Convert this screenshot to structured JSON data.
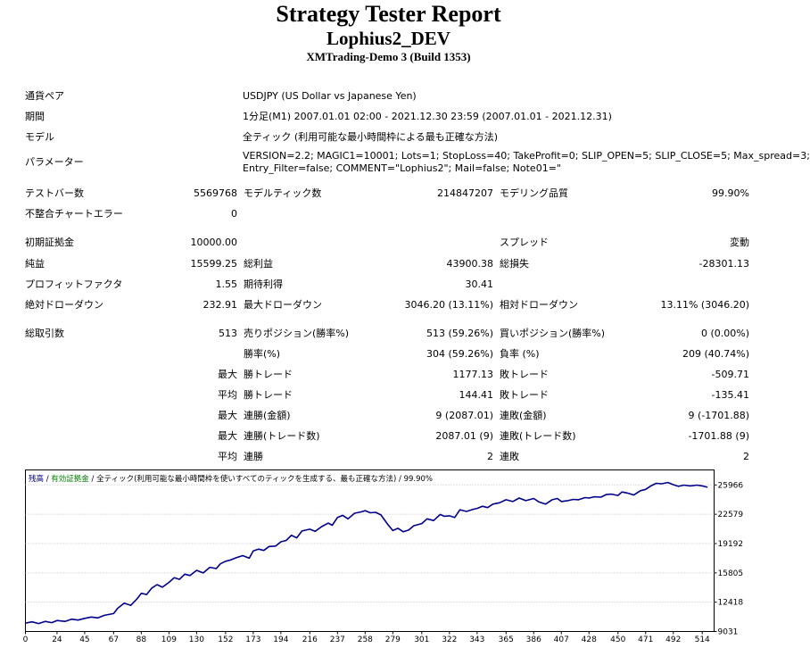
{
  "header": {
    "title": "Strategy Tester Report",
    "subtitle": "Lophius2_DEV",
    "build": "XMTrading-Demo 3 (Build 1353)"
  },
  "report": {
    "symbol": {
      "label": "通貨ペア",
      "value": "USDJPY (US Dollar vs Japanese Yen)"
    },
    "period": {
      "label": "期間",
      "value": "1分足(M1) 2007.01.01 02:00 - 2021.12.30 23:59 (2007.01.01 - 2021.12.31)"
    },
    "model": {
      "label": "モデル",
      "value": "全ティック (利用可能な最小時間枠による最も正確な方法)"
    },
    "parameters": {
      "label": "パラメーター",
      "line1": "VERSION=2.2; MAGIC1=10001; Lots=1; StopLoss=40; TakeProfit=0; SLIP_OPEN=5; SLIP_CLOSE=5; Max_spread=3;",
      "line2": "Entry_Filter=false; COMMENT=\"Lophius2\"; Mail=false; Note01=\""
    },
    "bars_tested": {
      "label": "テストバー数",
      "value": "5569768"
    },
    "ticks_modelled": {
      "label": "モデルティック数",
      "value": "214847207"
    },
    "modelling_quality": {
      "label": "モデリング品質",
      "value": "99.90%"
    },
    "mismatched_errors": {
      "label": "不整合チャートエラー",
      "value": "0"
    },
    "initial_deposit": {
      "label": "初期証拠金",
      "value": "10000.00"
    },
    "spread": {
      "label": "スプレッド",
      "value": "変動"
    },
    "net_profit": {
      "label": "純益",
      "value": "15599.25"
    },
    "gross_profit": {
      "label": "総利益",
      "value": "43900.38"
    },
    "gross_loss": {
      "label": "総損失",
      "value": "-28301.13"
    },
    "profit_factor": {
      "label": "プロフィットファクタ",
      "value": "1.55"
    },
    "expected_payoff": {
      "label": "期待利得",
      "value": "30.41"
    },
    "absolute_dd": {
      "label": "絶対ドローダウン",
      "value": "232.91"
    },
    "maximal_dd": {
      "label": "最大ドローダウン",
      "value": "3046.20 (13.11%)"
    },
    "relative_dd": {
      "label": "相対ドローダウン",
      "value": "13.11% (3046.20)"
    },
    "total_trades": {
      "label": "総取引数",
      "value": "513"
    },
    "short_positions": {
      "label": "売りポジション(勝率%)",
      "value": "513 (59.26%)"
    },
    "long_positions": {
      "label": "買いポジション(勝率%)",
      "value": "0 (0.00%)"
    },
    "profit_trades": {
      "label": "勝率(%)",
      "value": "304 (59.26%)"
    },
    "loss_trades": {
      "label": "負率 (%)",
      "value": "209 (40.74%)"
    },
    "largest": {
      "prefix": "最大",
      "profit_label": "勝トレード",
      "profit_value": "1177.13",
      "loss_label": "敗トレード",
      "loss_value": "-509.71"
    },
    "average": {
      "prefix": "平均",
      "profit_label": "勝トレード",
      "profit_value": "144.41",
      "loss_label": "敗トレード",
      "loss_value": "-135.41"
    },
    "max_consec_money": {
      "prefix": "最大",
      "wins_label": "連勝(金額)",
      "wins_value": "9 (2087.01)",
      "losses_label": "連敗(金額)",
      "losses_value": "9 (-1701.88)"
    },
    "max_consec_count": {
      "prefix": "最大",
      "wins_label": "連勝(トレード数)",
      "wins_value": "2087.01 (9)",
      "losses_label": "連敗(トレード数)",
      "losses_value": "-1701.88 (9)"
    },
    "avg_consec": {
      "prefix": "平均",
      "wins_label": "連勝",
      "wins_value": "2",
      "losses_label": "連敗",
      "losses_value": "2"
    }
  },
  "chart_data": {
    "type": "line",
    "legend": {
      "balance": "残高",
      "sep1": " / ",
      "equity": "有効証拠金",
      "sep2": " / ",
      "model": "全ティック(利用可能な最小時間枠を使いすべてのティックを生成する、最も正確な方法)",
      "sep3": " / ",
      "quality": "99.90%"
    },
    "colors": {
      "balance": "#00008b",
      "equity": "#008000",
      "grid": "#c0c0c0",
      "frame": "#000000"
    },
    "grid": true,
    "xlim": [
      0,
      523
    ],
    "ylim": [
      9031,
      27700
    ],
    "x_ticks": [
      0,
      24,
      45,
      67,
      88,
      109,
      130,
      152,
      173,
      194,
      216,
      237,
      258,
      279,
      301,
      322,
      343,
      365,
      386,
      407,
      428,
      450,
      471,
      492,
      514
    ],
    "y_ticks": [
      9031,
      12418,
      15805,
      19192,
      22579,
      25966
    ],
    "series": [
      {
        "name": "残高",
        "x": [
          0,
          5,
          10,
          15,
          20,
          24,
          30,
          35,
          40,
          45,
          50,
          55,
          60,
          67,
          70,
          75,
          80,
          85,
          88,
          92,
          96,
          100,
          104,
          109,
          113,
          117,
          121,
          125,
          130,
          135,
          140,
          145,
          148,
          152,
          156,
          160,
          165,
          170,
          173,
          177,
          181,
          185,
          190,
          194,
          198,
          202,
          206,
          210,
          216,
          220,
          225,
          230,
          233,
          237,
          241,
          245,
          250,
          255,
          258,
          262,
          266,
          270,
          275,
          279,
          283,
          287,
          291,
          295,
          301,
          305,
          310,
          315,
          318,
          322,
          326,
          330,
          335,
          340,
          343,
          347,
          351,
          355,
          360,
          365,
          370,
          375,
          380,
          386,
          390,
          395,
          400,
          404,
          407,
          412,
          416,
          420,
          425,
          428,
          432,
          437,
          441,
          445,
          450,
          453,
          458,
          462,
          467,
          471,
          475,
          479,
          483,
          488,
          492,
          496,
          500,
          505,
          510,
          514,
          518
        ],
        "y": [
          10000,
          10150,
          9950,
          10200,
          10050,
          10300,
          10200,
          10450,
          10350,
          10550,
          10700,
          10600,
          10900,
          11100,
          11700,
          12300,
          12050,
          12850,
          13450,
          13300,
          14050,
          14450,
          14150,
          14700,
          15250,
          15050,
          15650,
          15500,
          16100,
          15800,
          16450,
          16300,
          16850,
          17150,
          17300,
          17550,
          17800,
          17500,
          18350,
          18550,
          18400,
          18850,
          18900,
          19400,
          19550,
          20150,
          19850,
          20650,
          20850,
          20600,
          21150,
          21550,
          21300,
          22200,
          22450,
          22050,
          22700,
          22850,
          23000,
          22750,
          22800,
          22500,
          21450,
          20700,
          20950,
          20550,
          20750,
          21250,
          21500,
          22050,
          21850,
          22550,
          22350,
          22400,
          22200,
          23100,
          22900,
          23150,
          23250,
          23500,
          23350,
          23750,
          23900,
          24250,
          24050,
          24450,
          24150,
          24400,
          24000,
          23750,
          24250,
          24400,
          24050,
          24150,
          24300,
          24250,
          24500,
          24450,
          24600,
          24550,
          24850,
          24900,
          24750,
          25150,
          25000,
          24800,
          25300,
          25450,
          25850,
          26150,
          26100,
          26250,
          26000,
          25800,
          25950,
          25850,
          25950,
          25850,
          25700
        ]
      }
    ]
  }
}
